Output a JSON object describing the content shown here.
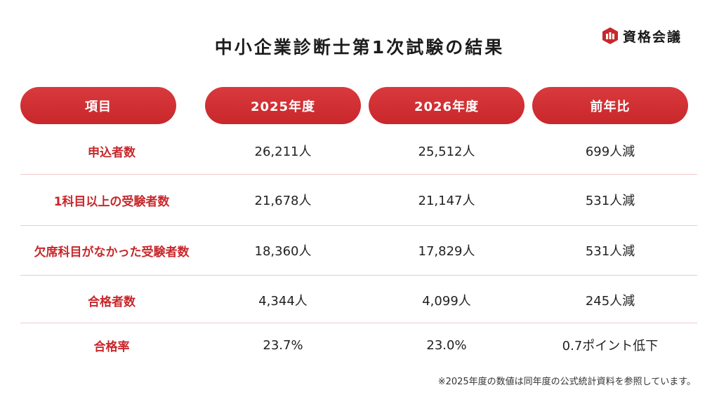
{
  "brand": {
    "name": "資格会議",
    "accent_color": "#c8272b"
  },
  "title": "中小企業診断士第1次試験の結果",
  "table": {
    "headers": [
      "項目",
      "2025年度",
      "2026年度",
      "前年比"
    ],
    "rows": [
      {
        "label": "申込者数",
        "y2025": "26,211人",
        "y2026": "25,512人",
        "change": "699人減"
      },
      {
        "label": "1科目以上の受験者数",
        "y2025": "21,678人",
        "y2026": "21,147人",
        "change": "531人減"
      },
      {
        "label": "欠席科目がなかった受験者数",
        "y2025": "18,360人",
        "y2026": "17,829人",
        "change": "531人減"
      },
      {
        "label": "合格者数",
        "y2025": "4,344人",
        "y2026": "4,099人",
        "change": "245人減"
      },
      {
        "label": "合格率",
        "y2025": "23.7%",
        "y2026": "23.0%",
        "change": "0.7ポイント低下"
      }
    ]
  },
  "footnote": "※2025年度の数値は同年度の公式統計資料を参照しています。"
}
